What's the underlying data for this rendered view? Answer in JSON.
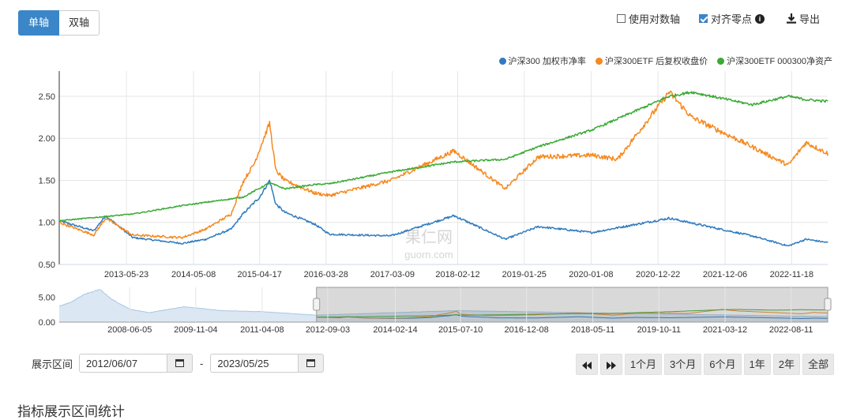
{
  "toolbar": {
    "single_axis": "单轴",
    "dual_axis": "双轴",
    "log_axis": "使用对数轴",
    "log_axis_checked": false,
    "align_zero": "对齐零点",
    "align_zero_checked": true,
    "info_icon": "info-icon",
    "export": "导出",
    "export_icon": "download-icon"
  },
  "legend": [
    {
      "name": "沪深300 加权市净率",
      "color": "#2f7bbf"
    },
    {
      "name": "沪深300ETF 后复权收盘价",
      "color": "#f5891f"
    },
    {
      "name": "沪深300ETF 000300净资产",
      "color": "#3aaa35"
    }
  ],
  "watermark": {
    "line1": "果仁网",
    "line2": "guorn.com"
  },
  "range": {
    "label": "展示区间",
    "start": "2012/06/07",
    "separator": "-",
    "end": "2023/05/25",
    "calendar_icon": "calendar-icon"
  },
  "nav": {
    "prev_icon": "double-left-icon",
    "next_icon": "double-right-icon",
    "buttons": [
      "1个月",
      "3个月",
      "6个月",
      "1年",
      "2年",
      "全部"
    ]
  },
  "section_title": "指标展示区间统计",
  "chart_data": [
    {
      "type": "line",
      "role": "main",
      "x_tick_labels": [
        "2013-05-23",
        "2014-05-08",
        "2015-04-17",
        "2016-03-28",
        "2017-03-09",
        "2018-02-12",
        "2019-01-25",
        "2020-01-08",
        "2020-12-22",
        "2021-12-06",
        "2022-11-18"
      ],
      "xlim": [
        "2012-06-07",
        "2023-05-25"
      ],
      "y_tick_labels": [
        "0.50",
        "1.00",
        "1.50",
        "2.00",
        "2.50"
      ],
      "ylim": [
        0.5,
        2.8
      ],
      "series": [
        {
          "name": "沪深300 加权市净率",
          "color": "#2f7bbf",
          "x": [
            "2012-06-07",
            "2012-12-04",
            "2013-02-04",
            "2013-06-25",
            "2014-03-10",
            "2014-07-10",
            "2014-11-20",
            "2015-01-20",
            "2015-04-17",
            "2015-06-08",
            "2015-07-10",
            "2015-08-26",
            "2016-01-28",
            "2016-04-15",
            "2017-03-01",
            "2018-01-24",
            "2018-10-18",
            "2019-04-08",
            "2020-01-13",
            "2021-02-18",
            "2022-04-26",
            "2022-10-31",
            "2023-02-01",
            "2023-05-25"
          ],
          "y": [
            1.02,
            0.9,
            1.08,
            0.82,
            0.75,
            0.8,
            0.92,
            1.1,
            1.3,
            1.5,
            1.22,
            1.12,
            0.98,
            0.86,
            0.84,
            1.08,
            0.8,
            0.95,
            0.88,
            1.05,
            0.84,
            0.72,
            0.8,
            0.76
          ]
        },
        {
          "name": "沪深300ETF 后复权收盘价",
          "color": "#f5891f",
          "x": [
            "2012-06-07",
            "2012-12-04",
            "2013-02-04",
            "2013-06-25",
            "2014-03-10",
            "2014-07-10",
            "2014-11-20",
            "2015-01-20",
            "2015-03-20",
            "2015-06-08",
            "2015-07-10",
            "2015-08-26",
            "2016-01-28",
            "2016-04-15",
            "2017-03-01",
            "2018-01-24",
            "2018-10-18",
            "2019-04-08",
            "2020-01-13",
            "2020-05-25",
            "2021-02-18",
            "2021-06-15",
            "2022-04-26",
            "2022-10-31",
            "2023-02-01",
            "2023-05-25"
          ],
          "y": [
            1.0,
            0.85,
            1.05,
            0.85,
            0.82,
            0.92,
            1.1,
            1.48,
            1.7,
            2.18,
            1.62,
            1.5,
            1.35,
            1.32,
            1.5,
            1.85,
            1.4,
            1.78,
            1.8,
            1.75,
            2.55,
            2.25,
            1.9,
            1.68,
            1.95,
            1.82
          ]
        },
        {
          "name": "沪深300ETF 000300净资产",
          "color": "#3aaa35",
          "x": [
            "2012-06-07",
            "2013-06-25",
            "2014-03-10",
            "2015-01-20",
            "2015-06-08",
            "2015-08-26",
            "2016-01-28",
            "2016-04-15",
            "2017-03-01",
            "2018-01-24",
            "2018-10-18",
            "2019-04-08",
            "2020-01-13",
            "2021-02-18",
            "2021-06-15",
            "2022-04-26",
            "2022-10-31",
            "2023-02-01",
            "2023-05-25"
          ],
          "y": [
            1.02,
            1.1,
            1.2,
            1.3,
            1.47,
            1.4,
            1.45,
            1.46,
            1.6,
            1.72,
            1.75,
            1.9,
            2.1,
            2.5,
            2.55,
            2.4,
            2.5,
            2.46,
            2.44
          ]
        }
      ]
    },
    {
      "type": "area",
      "role": "navigator",
      "x_tick_labels": [
        "2008-06-05",
        "2009-11-04",
        "2011-04-08",
        "2012-09-03",
        "2014-02-14",
        "2015-07-10",
        "2016-12-08",
        "2018-05-11",
        "2019-10-11",
        "2021-03-12",
        "2022-08-11"
      ],
      "xlim": [
        "2006-12-01",
        "2023-05-25"
      ],
      "y_tick_labels": [
        "0.00",
        "5.00"
      ],
      "ylim": [
        0,
        7
      ],
      "selected_range": [
        "2012-06-07",
        "2023-05-25"
      ],
      "series": [
        {
          "name": "沪深300 加权市净率",
          "x": [
            "2006-12-01",
            "2007-03-01",
            "2007-06-15",
            "2007-10-16",
            "2008-01-15",
            "2008-06-05",
            "2008-11-04",
            "2009-08-04",
            "2010-06-01",
            "2011-04-08",
            "2012-06-07",
            "2015-06-08",
            "2023-05-25"
          ],
          "y": [
            3.2,
            4.0,
            5.6,
            6.6,
            4.6,
            2.6,
            1.9,
            3.1,
            2.3,
            2.1,
            1.4,
            2.3,
            1.1
          ]
        }
      ]
    }
  ]
}
